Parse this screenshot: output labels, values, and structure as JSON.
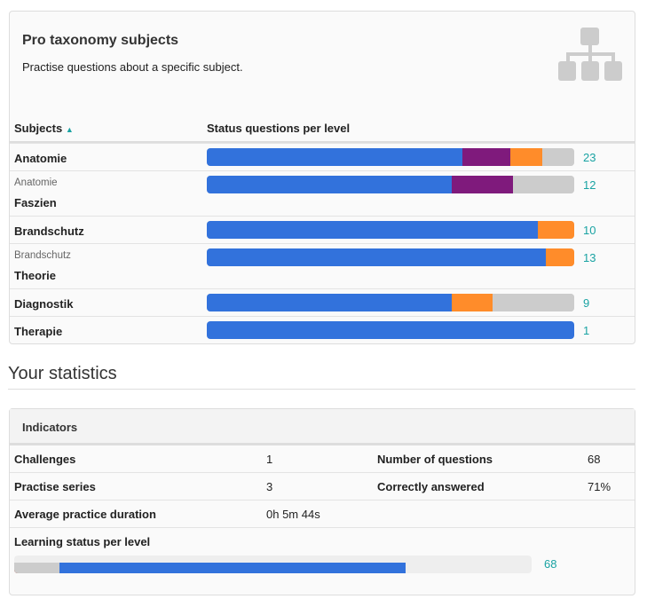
{
  "subjects_card": {
    "title": "Pro taxonomy subjects",
    "subtitle": "Practise questions about a specific subject.",
    "icon": "sitemap-icon",
    "columns": [
      "Subjects",
      "Status questions per level"
    ],
    "sort": "ascending",
    "rows": [
      {
        "parent": "",
        "name": "Anatomie",
        "count": "23",
        "levels": [
          16,
          3,
          2,
          2
        ]
      },
      {
        "parent": "Anatomie",
        "name": "Faszien",
        "count": "12",
        "levels": [
          8,
          2,
          0,
          2
        ]
      },
      {
        "parent": "",
        "name": "Brandschutz",
        "count": "10",
        "levels": [
          9,
          0,
          1,
          0
        ]
      },
      {
        "parent": "Brandschutz",
        "name": "Theorie",
        "count": "13",
        "levels": [
          12,
          0,
          1,
          0
        ]
      },
      {
        "parent": "",
        "name": "Diagnostik",
        "count": "9",
        "levels": [
          6,
          0,
          1,
          2
        ]
      },
      {
        "parent": "",
        "name": "Therapie",
        "count": "1",
        "levels": [
          1,
          0,
          0,
          0
        ]
      }
    ]
  },
  "level_colors": [
    "#3272dc",
    "#7f1a7c",
    "#ff8c2a",
    "#cccccc"
  ],
  "statistics": {
    "heading": "Your statistics",
    "card_title": "Indicators",
    "challenges_label": "Challenges",
    "challenges": "1",
    "questions_label": "Number of questions",
    "questions": "68",
    "series_label": "Practise series",
    "series": "3",
    "correct_label": "Correctly answered",
    "correct": "71%",
    "duration_label": "Average practice duration",
    "duration": "0h 5m 44s",
    "learning_label": "Learning status per level",
    "learning_count": "68",
    "learning_levels": [
      52,
      5,
      5,
      6
    ]
  }
}
